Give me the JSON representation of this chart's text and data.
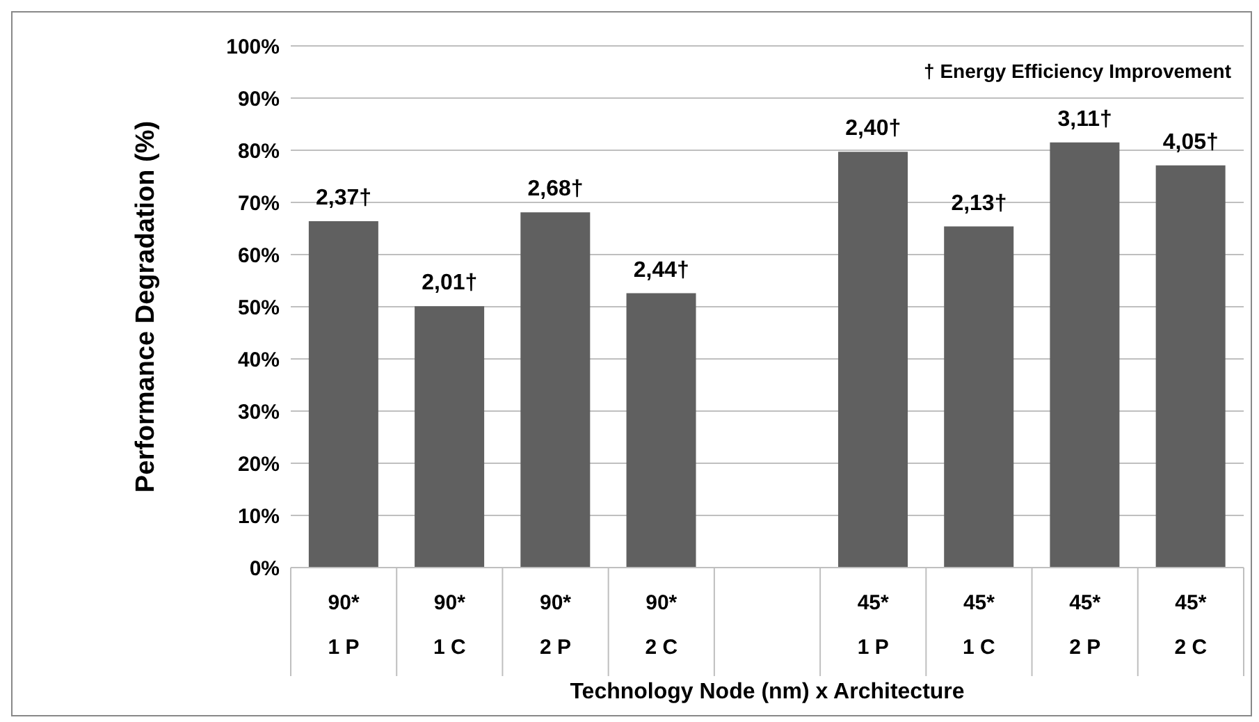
{
  "chart_data": {
    "type": "bar",
    "xlabel": "Technology Node (nm) x Architecture",
    "ylabel": "Performance  Degradation (%)",
    "categories": [
      "90*\n1 P",
      "90*\n1 C",
      "90*\n2 P",
      "90*\n2 C",
      null,
      "45*\n1 P",
      "45*\n1 C",
      "45*\n2 P",
      "45*\n2 C"
    ],
    "values": [
      66.4,
      50.1,
      68.1,
      52.6,
      null,
      79.7,
      65.4,
      81.5,
      77.1
    ],
    "color": "#606060",
    "ylim": [
      0,
      100
    ],
    "yticks": [
      {
        "value": 0,
        "label": "0%"
      },
      {
        "value": 10,
        "label": "10%"
      },
      {
        "value": 20,
        "label": "20%"
      },
      {
        "value": 30,
        "label": "30%"
      },
      {
        "value": 40,
        "label": "40%"
      },
      {
        "value": 50,
        "label": "50%"
      },
      {
        "value": 60,
        "label": "60%"
      },
      {
        "value": 70,
        "label": "70%"
      },
      {
        "value": 80,
        "label": "80%"
      },
      {
        "value": 90,
        "label": "90%"
      },
      {
        "value": 100,
        "label": "100%"
      }
    ],
    "grid": "y",
    "annotations": [
      "† Energy Efficiency Improvement",
      {
        "text": "2,37†",
        "x": "90*\n1 P",
        "y": 66.4
      },
      {
        "text": "2,01†",
        "x": "90*\n1 C",
        "y": 50.1
      },
      {
        "text": "2,68†",
        "x": "90*\n2 P",
        "y": 68.1
      },
      {
        "text": "2,44†",
        "x": "90*\n2 C",
        "y": 52.6
      },
      {
        "text": "2,40†",
        "x": "45*\n1 P",
        "y": 79.7
      },
      {
        "text": "2,13†",
        "x": "45*\n1 C",
        "y": 65.4
      },
      {
        "text": "3,11†",
        "x": "45*\n2 P",
        "y": 81.5
      },
      {
        "text": "4,05†",
        "x": "45*\n2 C",
        "y": 77.1
      }
    ]
  }
}
